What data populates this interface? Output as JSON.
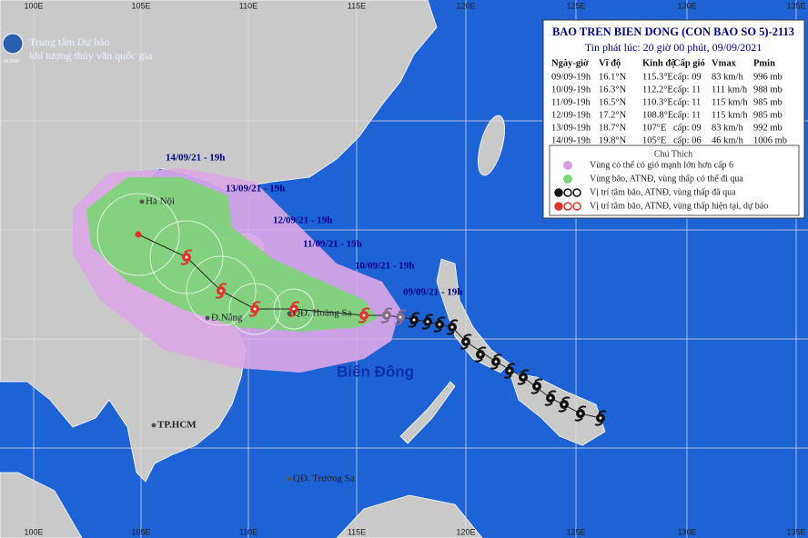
{
  "header": {
    "org_line1": "Trung tâm Dự báo",
    "org_line2": "khí tượng thủy văn quốc gia",
    "logo_text": "NCHMF"
  },
  "info": {
    "title": "BAO TREN BIEN DONG (CON BAO SO 5)-2113",
    "issued": "Tin phát lúc: 20 giờ 00 phút, 09/09/2021",
    "columns": [
      "Ngày-giờ",
      "Vĩ độ",
      "Kinh độ",
      "Cấp gió",
      "Vmax",
      "Pmin"
    ],
    "rows": [
      [
        "09/09-19h",
        "16.1°N",
        "115.3°E",
        "cấp: 09",
        "83 km/h",
        "996 mb"
      ],
      [
        "10/09-19h",
        "16.3°N",
        "112.2°E",
        "cấp: 11",
        "111 km/h",
        "988 mb"
      ],
      [
        "11/09-19h",
        "16.5°N",
        "110.3°E",
        "cấp: 11",
        "115 km/h",
        "985 mb"
      ],
      [
        "12/09-19h",
        "17.2°N",
        "108.8°E",
        "cấp: 11",
        "115 km/h",
        "985 mb"
      ],
      [
        "13/09-19h",
        "18.7°N",
        "107°E",
        "cấp: 09",
        "83 km/h",
        "992 mb"
      ],
      [
        "14/09-19h",
        "19.8°N",
        "105°E",
        "cấp: 06",
        "46 km/h",
        "1006 mb"
      ]
    ]
  },
  "legend": {
    "title": "Chú Thích",
    "items": [
      "Vùng có thể có gió mạnh lớn hơn cấp 6",
      "Vùng bão, ATNĐ, vùng thấp có thể đi qua",
      "Vị trí tâm bão, ATNĐ, vùng thấp đã qua",
      "Vị trí tâm bão, ATNĐ, vùng thấp hiện tại, dự báo"
    ]
  },
  "map": {
    "longitude_labels_top": [
      "100E",
      "105E",
      "110E",
      "115E",
      "120E",
      "125E",
      "130E",
      "135E"
    ],
    "longitude_labels_bottom": [
      "100E",
      "105E",
      "110E",
      "115E",
      "120E",
      "125E",
      "130E",
      "135E"
    ],
    "track_labels": [
      "14/09/21 - 19h",
      "13/09/21 - 19h",
      "12/09/21 - 19h",
      "11/09/21 - 19h",
      "10/09/21 - 19h",
      "09/09/21 - 19h"
    ],
    "places": [
      "Hà Nội",
      "Đ.Nẵng",
      "QĐ. Hoàng Sa",
      "TP.HCM",
      "QĐ. Trường Sa"
    ],
    "sea_label": "Biển Đông"
  }
}
